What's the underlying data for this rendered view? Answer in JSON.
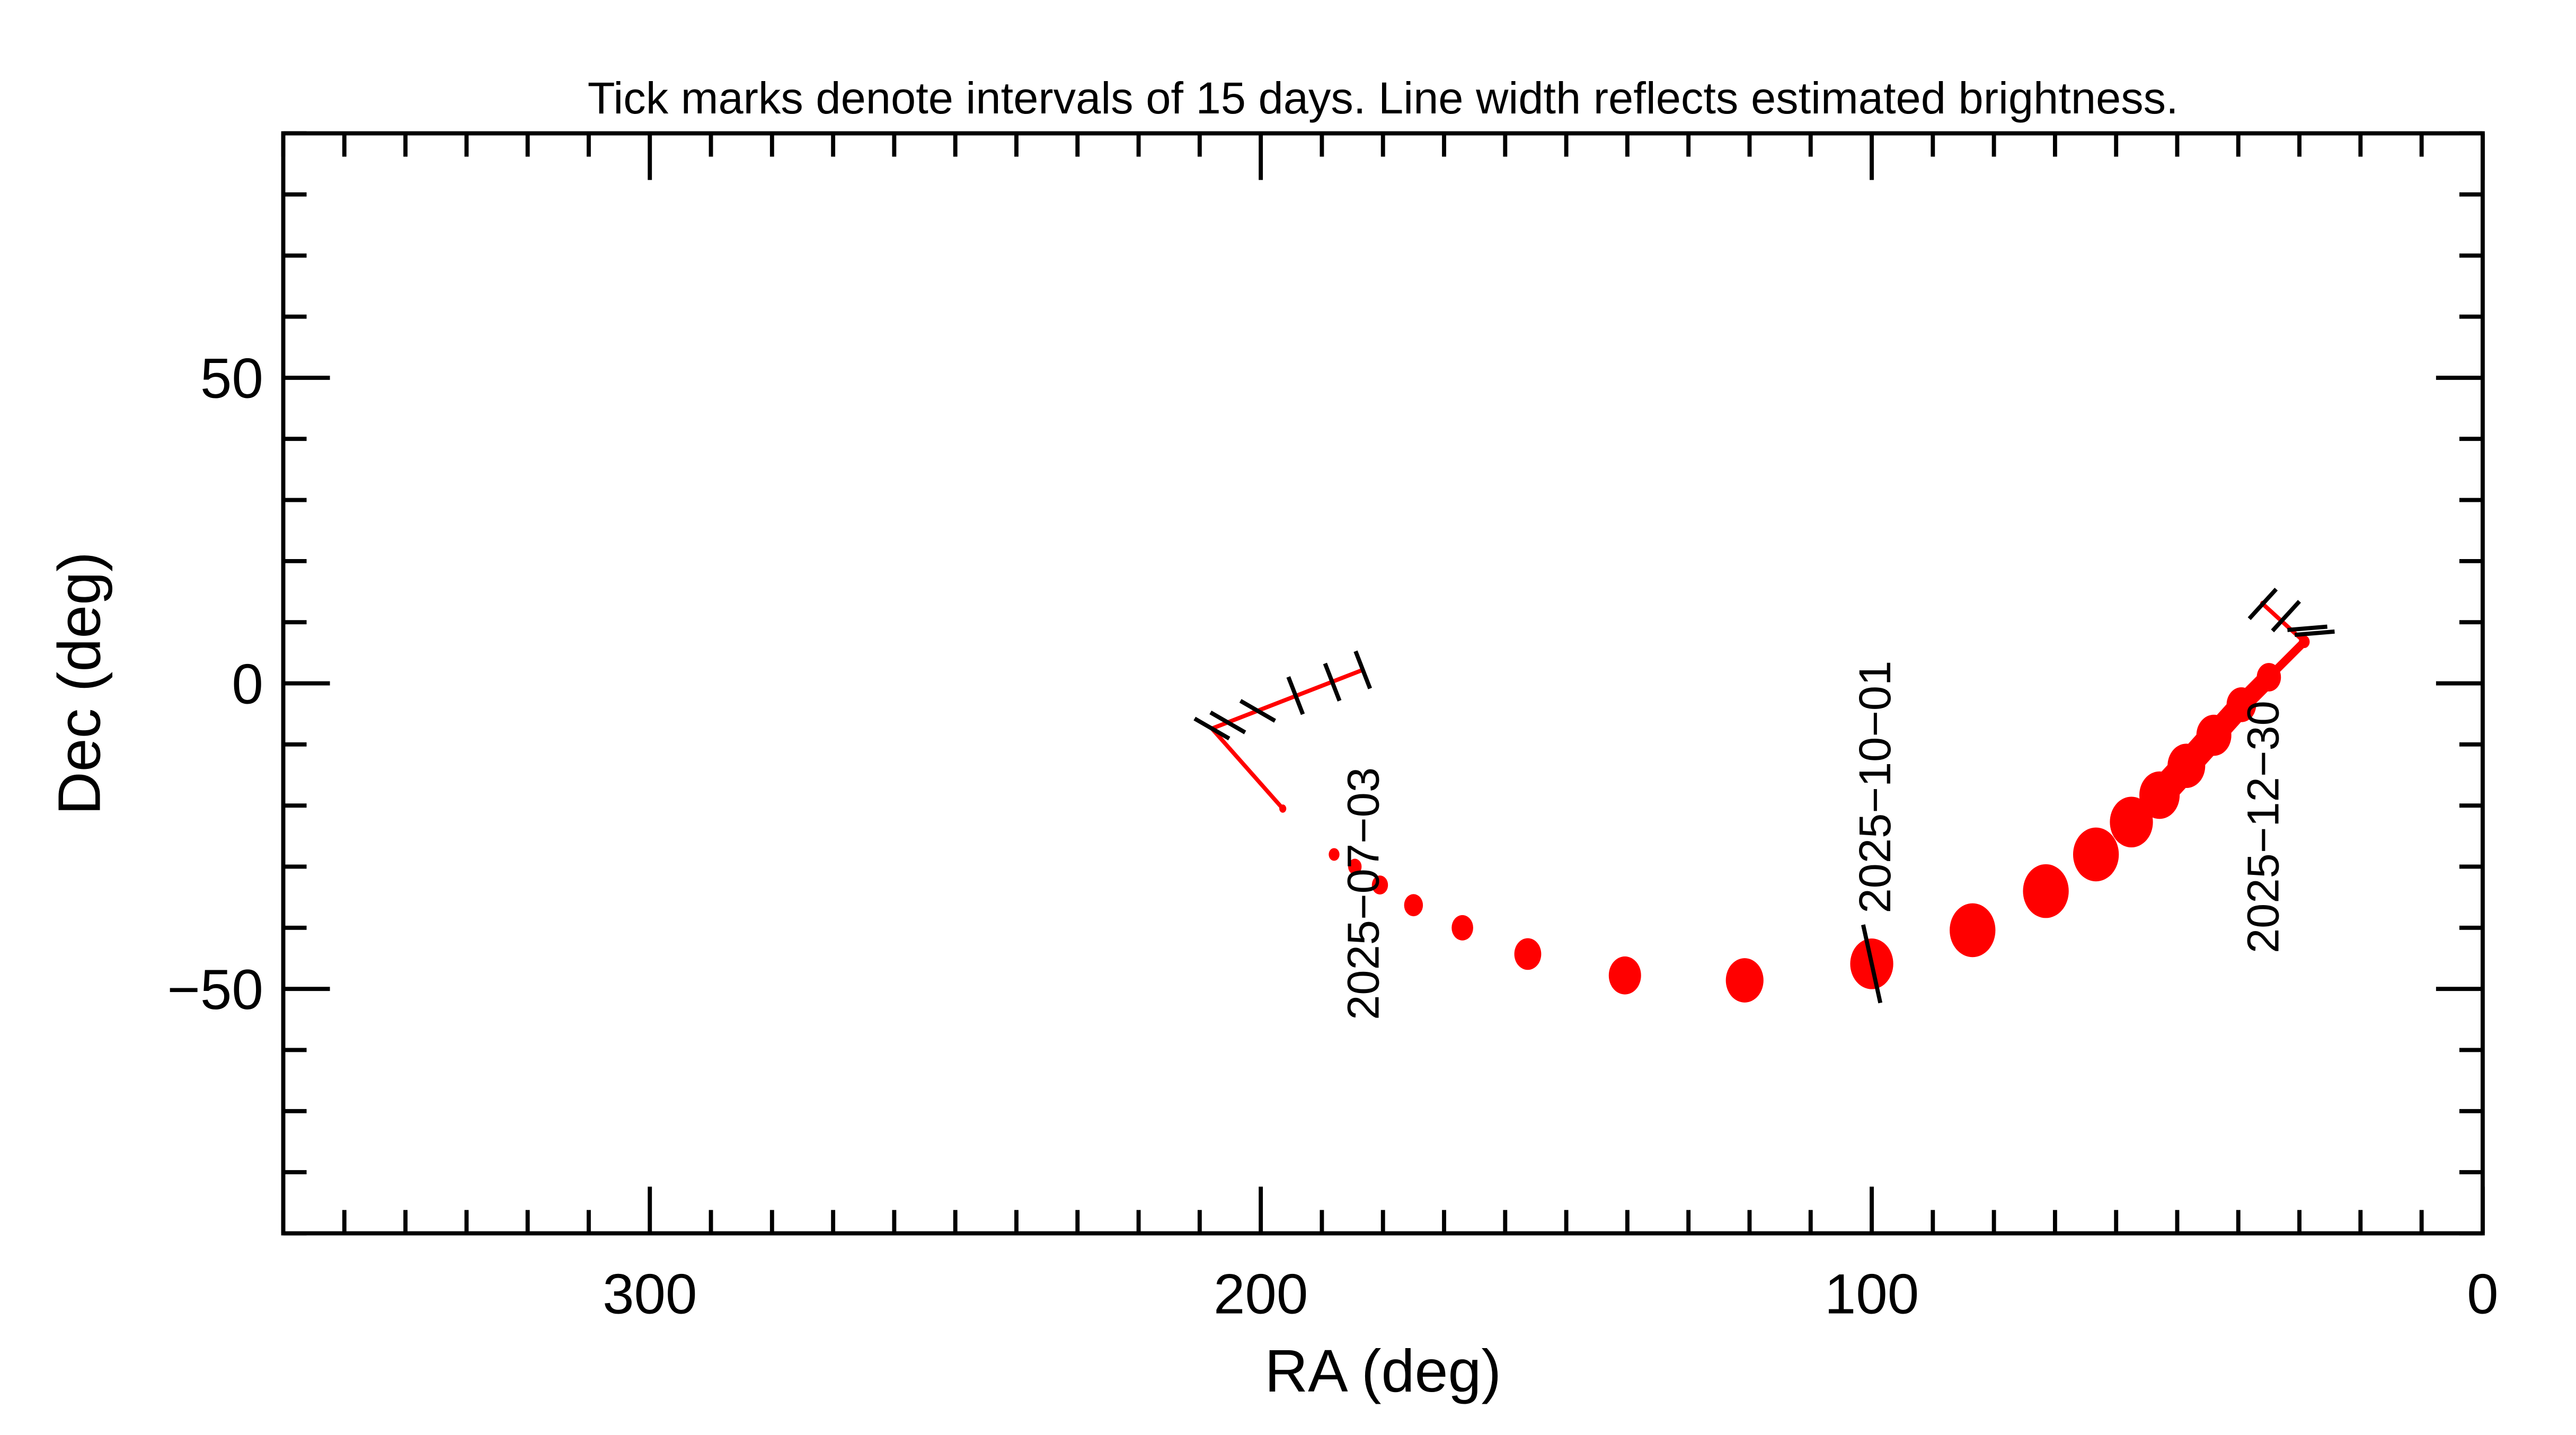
{
  "chart_data": {
    "type": "line",
    "title": "Tick marks denote intervals of 15 days.  Line width reflects estimated brightness.",
    "xlabel": "RA (deg)",
    "ylabel": "Dec (deg)",
    "xlim": [
      360,
      0
    ],
    "ylim": [
      -90,
      90
    ],
    "x_ticks": [
      300,
      200,
      100,
      0
    ],
    "x_tick_labels": [
      "300",
      "200",
      "100",
      "0"
    ],
    "y_ticks": [
      50,
      0,
      -50
    ],
    "y_tick_labels": [
      "50",
      "0",
      "−50"
    ],
    "grid": false,
    "colors": {
      "track": "#ff0000",
      "ticks": "#000000",
      "axes": "#000000"
    },
    "track": [
      {
        "ra": 183.3,
        "dec": 2.2,
        "width": 1
      },
      {
        "ra": 208.0,
        "dec": -7.4,
        "width": 1
      },
      {
        "ra": 196.4,
        "dec": -20.5,
        "width": 1.3
      },
      {
        "ra": 188.0,
        "dec": -28.0,
        "width": 2
      },
      {
        "ra": 184.6,
        "dec": -30.0,
        "width": 2.5
      },
      {
        "ra": 180.5,
        "dec": -33.0,
        "width": 3
      },
      {
        "ra": 175.0,
        "dec": -36.3,
        "width": 3.5
      },
      {
        "ra": 167.0,
        "dec": -40.0,
        "width": 4
      },
      {
        "ra": 156.3,
        "dec": -44.3,
        "width": 5
      },
      {
        "ra": 140.4,
        "dec": -47.8,
        "width": 6
      },
      {
        "ra": 120.8,
        "dec": -48.6,
        "width": 7
      },
      {
        "ra": 100.0,
        "dec": -45.9,
        "width": 8
      },
      {
        "ra": 83.5,
        "dec": -40.4,
        "width": 8.5
      },
      {
        "ra": 71.5,
        "dec": -34.0,
        "width": 8.5
      },
      {
        "ra": 63.3,
        "dec": -28.0,
        "width": 8.5
      },
      {
        "ra": 57.5,
        "dec": -22.7,
        "width": 8
      },
      {
        "ra": 52.9,
        "dec": -18.3,
        "width": 7.5
      },
      {
        "ra": 48.5,
        "dec": -13.5,
        "width": 7
      },
      {
        "ra": 44.0,
        "dec": -8.5,
        "width": 6.5
      },
      {
        "ra": 39.5,
        "dec": -3.5,
        "width": 5.5
      },
      {
        "ra": 35.0,
        "dec": 1.0,
        "width": 4.5
      },
      {
        "ra": 29.2,
        "dec": 6.8,
        "width": 2
      },
      {
        "ra": 36.0,
        "dec": 13.0,
        "width": 1
      }
    ],
    "interval_ticks": [
      {
        "ra": 183.3,
        "dec": 2.2
      },
      {
        "ra": 188.3,
        "dec": 0.2
      },
      {
        "ra": 194.3,
        "dec": -2.0
      },
      {
        "ra": 200.5,
        "dec": -4.5
      },
      {
        "ra": 205.4,
        "dec": -6.4
      },
      {
        "ra": 208.0,
        "dec": -7.4
      },
      {
        "ra": 100.0,
        "dec": -45.9
      },
      {
        "ra": 36.0,
        "dec": 13.0
      },
      {
        "ra": 32.2,
        "dec": 11.0
      },
      {
        "ra": 28.7,
        "dec": 9.0
      },
      {
        "ra": 27.5,
        "dec": 8.2
      }
    ],
    "date_labels": [
      {
        "text": "2025−07−03",
        "ra": 183.3,
        "dec": 2.2
      },
      {
        "text": "2025−10−01",
        "ra": 100.0,
        "dec": -45.9
      },
      {
        "text": "2025−12−30",
        "ra": 29.2,
        "dec": 6.8
      }
    ]
  }
}
